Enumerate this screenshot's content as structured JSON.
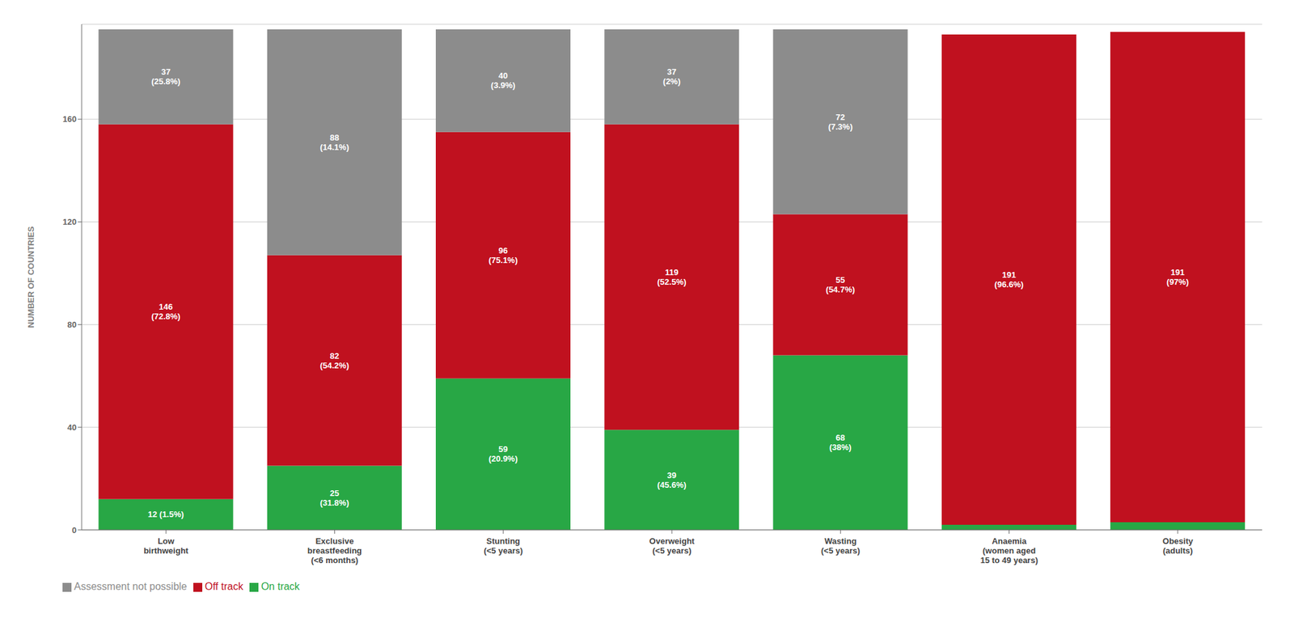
{
  "chart_data": {
    "type": "bar",
    "stacked": true,
    "categories": [
      "Low\nbirthweight",
      "Exclusive\nbreastfeeding\n(<6 months)",
      "Stunting\n(<5 years)",
      "Overweight\n(<5 years)",
      "Wasting\n(<5 years)",
      "Anaemia\n(women aged\n15 to 49 years)",
      "Obesity\n(adults)"
    ],
    "series": [
      {
        "name": "On track",
        "color": "#28a745",
        "values": [
          12,
          25,
          59,
          39,
          68,
          2,
          3
        ],
        "value_labels": [
          "12 (1.5%)",
          "25\n(31.8%)",
          "59\n(20.9%)",
          "39\n(45.6%)",
          "68\n(38%)",
          null,
          null
        ]
      },
      {
        "name": "Off track",
        "color": "#c0111f",
        "values": [
          146,
          82,
          96,
          119,
          55,
          191,
          191
        ],
        "value_labels": [
          "146\n(72.8%)",
          "82\n(54.2%)",
          "96\n(75.1%)",
          "119\n(52.5%)",
          "55\n(54.7%)",
          "191\n(96.6%)",
          "191\n(97%)"
        ]
      },
      {
        "name": "Assessment not possible",
        "color": "#8c8c8c",
        "values": [
          37,
          88,
          40,
          37,
          72,
          0,
          0
        ],
        "value_labels": [
          "37\n(25.8%)",
          "88\n(14.1%)",
          "40\n(3.9%)",
          "37\n(2%)",
          "72\n(7.3%)",
          null,
          null
        ]
      }
    ],
    "ylabel": "NUMBER OF COUNTRIES",
    "ylim": [
      0,
      197
    ],
    "yticks": [
      0,
      40,
      80,
      120,
      160
    ],
    "grid": true,
    "legend": "lower left",
    "data_labels": true
  }
}
